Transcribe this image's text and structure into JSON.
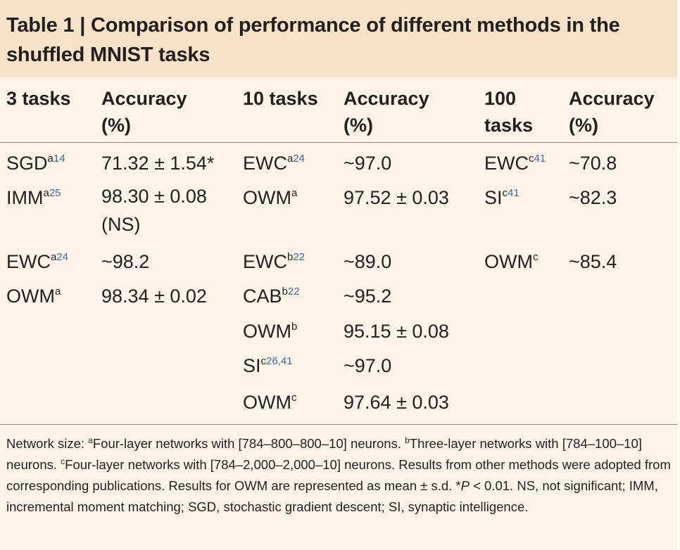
{
  "table": {
    "title": "Table 1 | Comparison of performance of different methods in the shuffled MNIST tasks",
    "headers": {
      "col1": "3 tasks",
      "col2": "Accuracy (%)",
      "col3": "10 tasks",
      "col4": "Accuracy (%)",
      "col5": "100 tasks",
      "col6": "Accuracy (%)"
    },
    "three_tasks": [
      {
        "method": "SGD",
        "sup_letter": "a",
        "sup_ref": "14",
        "accuracy": "71.32 ± 1.54*"
      },
      {
        "method": "IMM",
        "sup_letter": "a",
        "sup_ref": "25",
        "accuracy": "98.30 ± 0.08 (NS)"
      },
      {
        "method": "EWC",
        "sup_letter": "a",
        "sup_ref": "24",
        "accuracy": "~98.2"
      },
      {
        "method": "OWM",
        "sup_letter": "a",
        "sup_ref": "",
        "accuracy": "98.34 ± 0.02"
      }
    ],
    "ten_tasks": [
      {
        "method": "EWC",
        "sup_letter": "a",
        "sup_ref": "24",
        "accuracy": "~97.0"
      },
      {
        "method": "OWM",
        "sup_letter": "a",
        "sup_ref": "",
        "accuracy": "97.52 ± 0.03"
      },
      {
        "method": "EWC",
        "sup_letter": "b",
        "sup_ref": "22",
        "accuracy": "~89.0"
      },
      {
        "method": "CAB",
        "sup_letter": "b",
        "sup_ref": "22",
        "accuracy": "~95.2"
      },
      {
        "method": "OWM",
        "sup_letter": "b",
        "sup_ref": "",
        "accuracy": "95.15 ± 0.08"
      },
      {
        "method": "SI",
        "sup_letter": "c",
        "sup_ref": "26,41",
        "accuracy": "~97.0"
      },
      {
        "method": "OWM",
        "sup_letter": "c",
        "sup_ref": "",
        "accuracy": "97.64 ± 0.03"
      }
    ],
    "hundred_tasks": [
      {
        "method": "EWC",
        "sup_letter": "c",
        "sup_ref": "41",
        "accuracy": "~70.8"
      },
      {
        "method": "SI",
        "sup_letter": "c",
        "sup_ref": "41",
        "accuracy": "~82.3"
      },
      {
        "method": "OWM",
        "sup_letter": "c",
        "sup_ref": "",
        "accuracy": "~85.4"
      }
    ],
    "footnote": {
      "lead": "Network size: ",
      "a_mark": "a",
      "a_text": "Four-layer networks with [784–800–800–10] neurons. ",
      "b_mark": "b",
      "b_text": "Three-layer networks with [784–100–10] neurons. ",
      "c_mark": "c",
      "c_text": "Four-layer networks with [784–2,000–2,000–10] neurons. Results from other methods were adopted from corresponding publications. Results for OWM are represented as mean ± s.d. *",
      "p_italic": "P",
      "rest": " < 0.01. NS, not significant; IMM, incremental moment matching; SGD, stochastic gradient descent; SI, synaptic intelligence."
    }
  }
}
